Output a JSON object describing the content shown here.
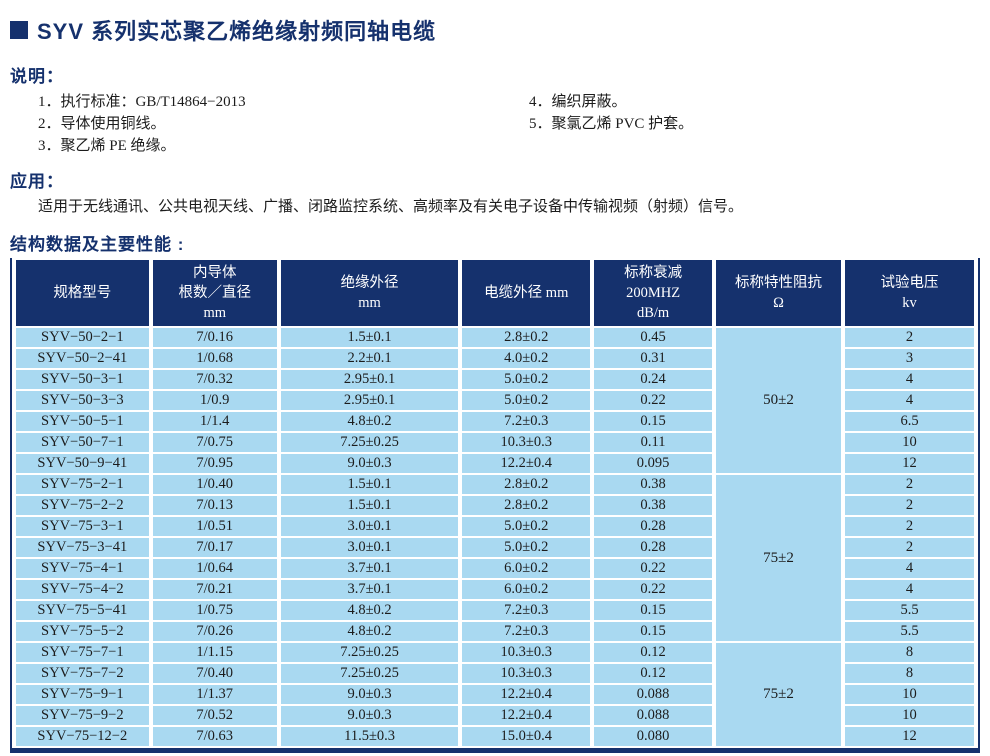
{
  "page": {
    "title": "SYV 系列实芯聚乙烯绝缘射频同轴电缆"
  },
  "description": {
    "heading": "说明：",
    "items_left": [
      "1．执行标准：GB/T14864−2013",
      "2．导体使用铜线。",
      "3．聚乙烯 PE 绝缘。"
    ],
    "items_right": [
      "4．编织屏蔽。",
      "5．聚氯乙烯 PVC 护套。"
    ]
  },
  "application": {
    "heading": "应用：",
    "text": "适用于无线通讯、公共电视天线、广播、闭路监控系统、高频率及有关电子设备中传输视频（射频）信号。"
  },
  "table": {
    "heading": "结构数据及主要性能 :",
    "columns": [
      {
        "lines": [
          "规格型号"
        ]
      },
      {
        "lines": [
          "内导体",
          "根数／直径",
          "mm"
        ]
      },
      {
        "lines": [
          "绝缘外径",
          "mm"
        ]
      },
      {
        "lines": [
          "电缆外径 mm"
        ]
      },
      {
        "lines": [
          "标称衰减",
          "200MHZ",
          "dB/m"
        ]
      },
      {
        "lines": [
          "标称特性阻抗",
          "Ω"
        ]
      },
      {
        "lines": [
          "试验电压",
          "kv"
        ]
      }
    ],
    "impedance_groups": [
      {
        "label": "50±2",
        "start": 0,
        "rows": 7
      },
      {
        "label": "75±2",
        "start": 7,
        "rows": 8
      },
      {
        "label": "75±2",
        "start": 15,
        "rows": 5
      }
    ],
    "rows": [
      [
        "SYV−50−2−1",
        "7/0.16",
        "1.5±0.1",
        "2.8±0.2",
        "0.45",
        "2"
      ],
      [
        "SYV−50−2−41",
        "1/0.68",
        "2.2±0.1",
        "4.0±0.2",
        "0.31",
        "3"
      ],
      [
        "SYV−50−3−1",
        "7/0.32",
        "2.95±0.1",
        "5.0±0.2",
        "0.24",
        "4"
      ],
      [
        "SYV−50−3−3",
        "1/0.9",
        "2.95±0.1",
        "5.0±0.2",
        "0.22",
        "4"
      ],
      [
        "SYV−50−5−1",
        "1/1.4",
        "4.8±0.2",
        "7.2±0.3",
        "0.15",
        "6.5"
      ],
      [
        "SYV−50−7−1",
        "7/0.75",
        "7.25±0.25",
        "10.3±0.3",
        "0.11",
        "10"
      ],
      [
        "SYV−50−9−41",
        "7/0.95",
        "9.0±0.3",
        "12.2±0.4",
        "0.095",
        "12"
      ],
      [
        "SYV−75−2−1",
        "1/0.40",
        "1.5±0.1",
        "2.8±0.2",
        "0.38",
        "2"
      ],
      [
        "SYV−75−2−2",
        "7/0.13",
        "1.5±0.1",
        "2.8±0.2",
        "0.38",
        "2"
      ],
      [
        "SYV−75−3−1",
        "1/0.51",
        "3.0±0.1",
        "5.0±0.2",
        "0.28",
        "2"
      ],
      [
        "SYV−75−3−41",
        "7/0.17",
        "3.0±0.1",
        "5.0±0.2",
        "0.28",
        "2"
      ],
      [
        "SYV−75−4−1",
        "1/0.64",
        "3.7±0.1",
        "6.0±0.2",
        "0.22",
        "4"
      ],
      [
        "SYV−75−4−2",
        "7/0.21",
        "3.7±0.1",
        "6.0±0.2",
        "0.22",
        "4"
      ],
      [
        "SYV−75−5−41",
        "1/0.75",
        "4.8±0.2",
        "7.2±0.3",
        "0.15",
        "5.5"
      ],
      [
        "SYV−75−5−2",
        "7/0.26",
        "4.8±0.2",
        "7.2±0.3",
        "0.15",
        "5.5"
      ],
      [
        "SYV−75−7−1",
        "1/1.15",
        "7.25±0.25",
        "10.3±0.3",
        "0.12",
        "8"
      ],
      [
        "SYV−75−7−2",
        "7/0.40",
        "7.25±0.25",
        "10.3±0.3",
        "0.12",
        "8"
      ],
      [
        "SYV−75−9−1",
        "1/1.37",
        "9.0±0.3",
        "12.2±0.4",
        "0.088",
        "10"
      ],
      [
        "SYV−75−9−2",
        "7/0.52",
        "9.0±0.3",
        "12.2±0.4",
        "0.088",
        "10"
      ],
      [
        "SYV−75−12−2",
        "7/0.63",
        "11.5±0.3",
        "15.0±0.4",
        "0.080",
        "12"
      ]
    ]
  },
  "colors": {
    "accent_navy": "#15316d",
    "row_blue": "#a9d9f1",
    "header_text": "#ffffff"
  }
}
